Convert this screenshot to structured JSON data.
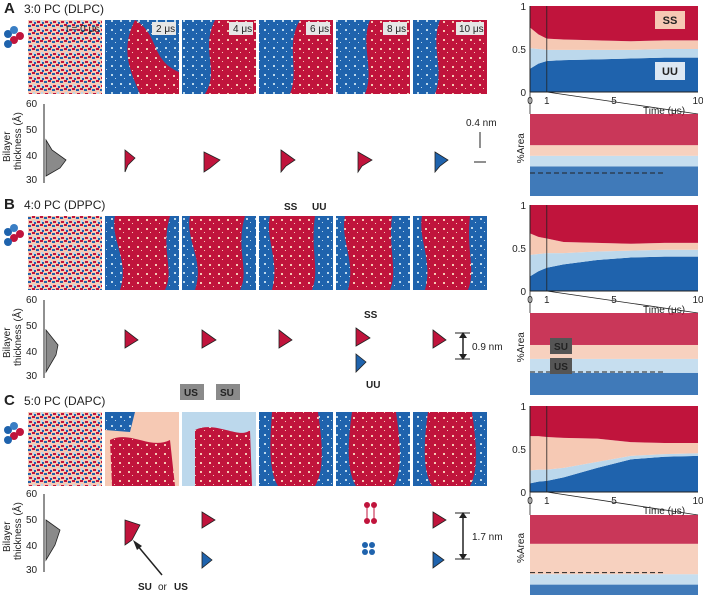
{
  "panels": [
    {
      "letter": "A",
      "title": "3:0 PC (DLPC)",
      "time_labels": [
        "t = 0 μs",
        "2 μs",
        "4 μs",
        "6 μs",
        "8 μs",
        "10 μs"
      ],
      "scale_label": "0.4 nm"
    },
    {
      "letter": "B",
      "title": "4:0 PC (DPPC)",
      "scale_label": "0.9 nm"
    },
    {
      "letter": "C",
      "title": "5:0 PC (DAPC)",
      "scale_label": "1.7 nm"
    }
  ],
  "labels": {
    "ss": "SS",
    "uu": "UU",
    "su": "SU",
    "us": "US",
    "su_or_us_a": "SU",
    "su_or_us_or": "or",
    "su_or_us_b": "US",
    "bilayer_line1": "Bilayer",
    "bilayer_line2": "thickness (Å)",
    "time_axis": "Time (μs)",
    "area_axis": "%Area"
  },
  "histogram_axis": {
    "ticks": [
      "60",
      "50",
      "40",
      "30"
    ]
  },
  "colors": {
    "red": "#c0143c",
    "pink": "#f6c9b4",
    "lightblue": "#bcd8ec",
    "blue": "#1f63ad",
    "grey": "#8a8a8a"
  },
  "chart_data": [
    {
      "type": "area",
      "title": "3:0 PC (DLPC)",
      "xlabel": "Time (μs)",
      "ylabel": "%Area",
      "xlim": [
        0,
        10
      ],
      "ylim": [
        0,
        1
      ],
      "x_ticks": [
        "0",
        "1",
        "5",
        "10"
      ],
      "y_ticks": [
        "0",
        "0.5",
        "1"
      ],
      "x": [
        0,
        0.5,
        1,
        2,
        4,
        6,
        8,
        10
      ],
      "series": [
        {
          "name": "UU",
          "values": [
            0.27,
            0.33,
            0.36,
            0.37,
            0.38,
            0.39,
            0.4,
            0.4
          ]
        },
        {
          "name": "US",
          "values": [
            0.24,
            0.17,
            0.13,
            0.12,
            0.11,
            0.1,
            0.1,
            0.1
          ]
        },
        {
          "name": "SU",
          "values": [
            0.24,
            0.17,
            0.13,
            0.12,
            0.11,
            0.1,
            0.1,
            0.1
          ]
        },
        {
          "name": "SS",
          "values": [
            0.25,
            0.33,
            0.38,
            0.39,
            0.4,
            0.41,
            0.4,
            0.4
          ]
        }
      ]
    },
    {
      "type": "area",
      "title": "4:0 PC (DPPC)",
      "xlabel": "Time (μs)",
      "ylabel": "%Area",
      "xlim": [
        0,
        10
      ],
      "ylim": [
        0,
        1
      ],
      "x_ticks": [
        "0",
        "1",
        "5",
        "10"
      ],
      "y_ticks": [
        "0",
        "0.5",
        "1"
      ],
      "x": [
        0,
        0.5,
        1,
        2,
        4,
        6,
        8,
        10
      ],
      "series": [
        {
          "name": "UU",
          "values": [
            0.17,
            0.23,
            0.27,
            0.31,
            0.36,
            0.39,
            0.4,
            0.4
          ]
        },
        {
          "name": "US",
          "values": [
            0.25,
            0.2,
            0.17,
            0.13,
            0.1,
            0.08,
            0.08,
            0.08
          ]
        },
        {
          "name": "SU",
          "values": [
            0.25,
            0.2,
            0.17,
            0.13,
            0.1,
            0.08,
            0.08,
            0.08
          ]
        },
        {
          "name": "SS",
          "values": [
            0.33,
            0.37,
            0.39,
            0.43,
            0.44,
            0.45,
            0.44,
            0.44
          ]
        }
      ]
    },
    {
      "type": "area",
      "title": "5:0 PC (DAPC)",
      "xlabel": "Time (μs)",
      "ylabel": "%Area",
      "xlim": [
        0,
        10
      ],
      "ylim": [
        0,
        1
      ],
      "x_ticks": [
        "0",
        "1",
        "5",
        "10"
      ],
      "y_ticks": [
        "0",
        "0.5",
        "1"
      ],
      "x": [
        0,
        0.5,
        1,
        2,
        4,
        6,
        8,
        10
      ],
      "series": [
        {
          "name": "UU",
          "values": [
            0.1,
            0.12,
            0.13,
            0.17,
            0.28,
            0.38,
            0.41,
            0.42
          ]
        },
        {
          "name": "US",
          "values": [
            0.15,
            0.14,
            0.13,
            0.11,
            0.07,
            0.04,
            0.03,
            0.03
          ]
        },
        {
          "name": "SU",
          "values": [
            0.4,
            0.39,
            0.38,
            0.35,
            0.27,
            0.16,
            0.13,
            0.12
          ]
        },
        {
          "name": "SS",
          "values": [
            0.35,
            0.35,
            0.36,
            0.37,
            0.38,
            0.42,
            0.43,
            0.43
          ]
        }
      ]
    }
  ]
}
